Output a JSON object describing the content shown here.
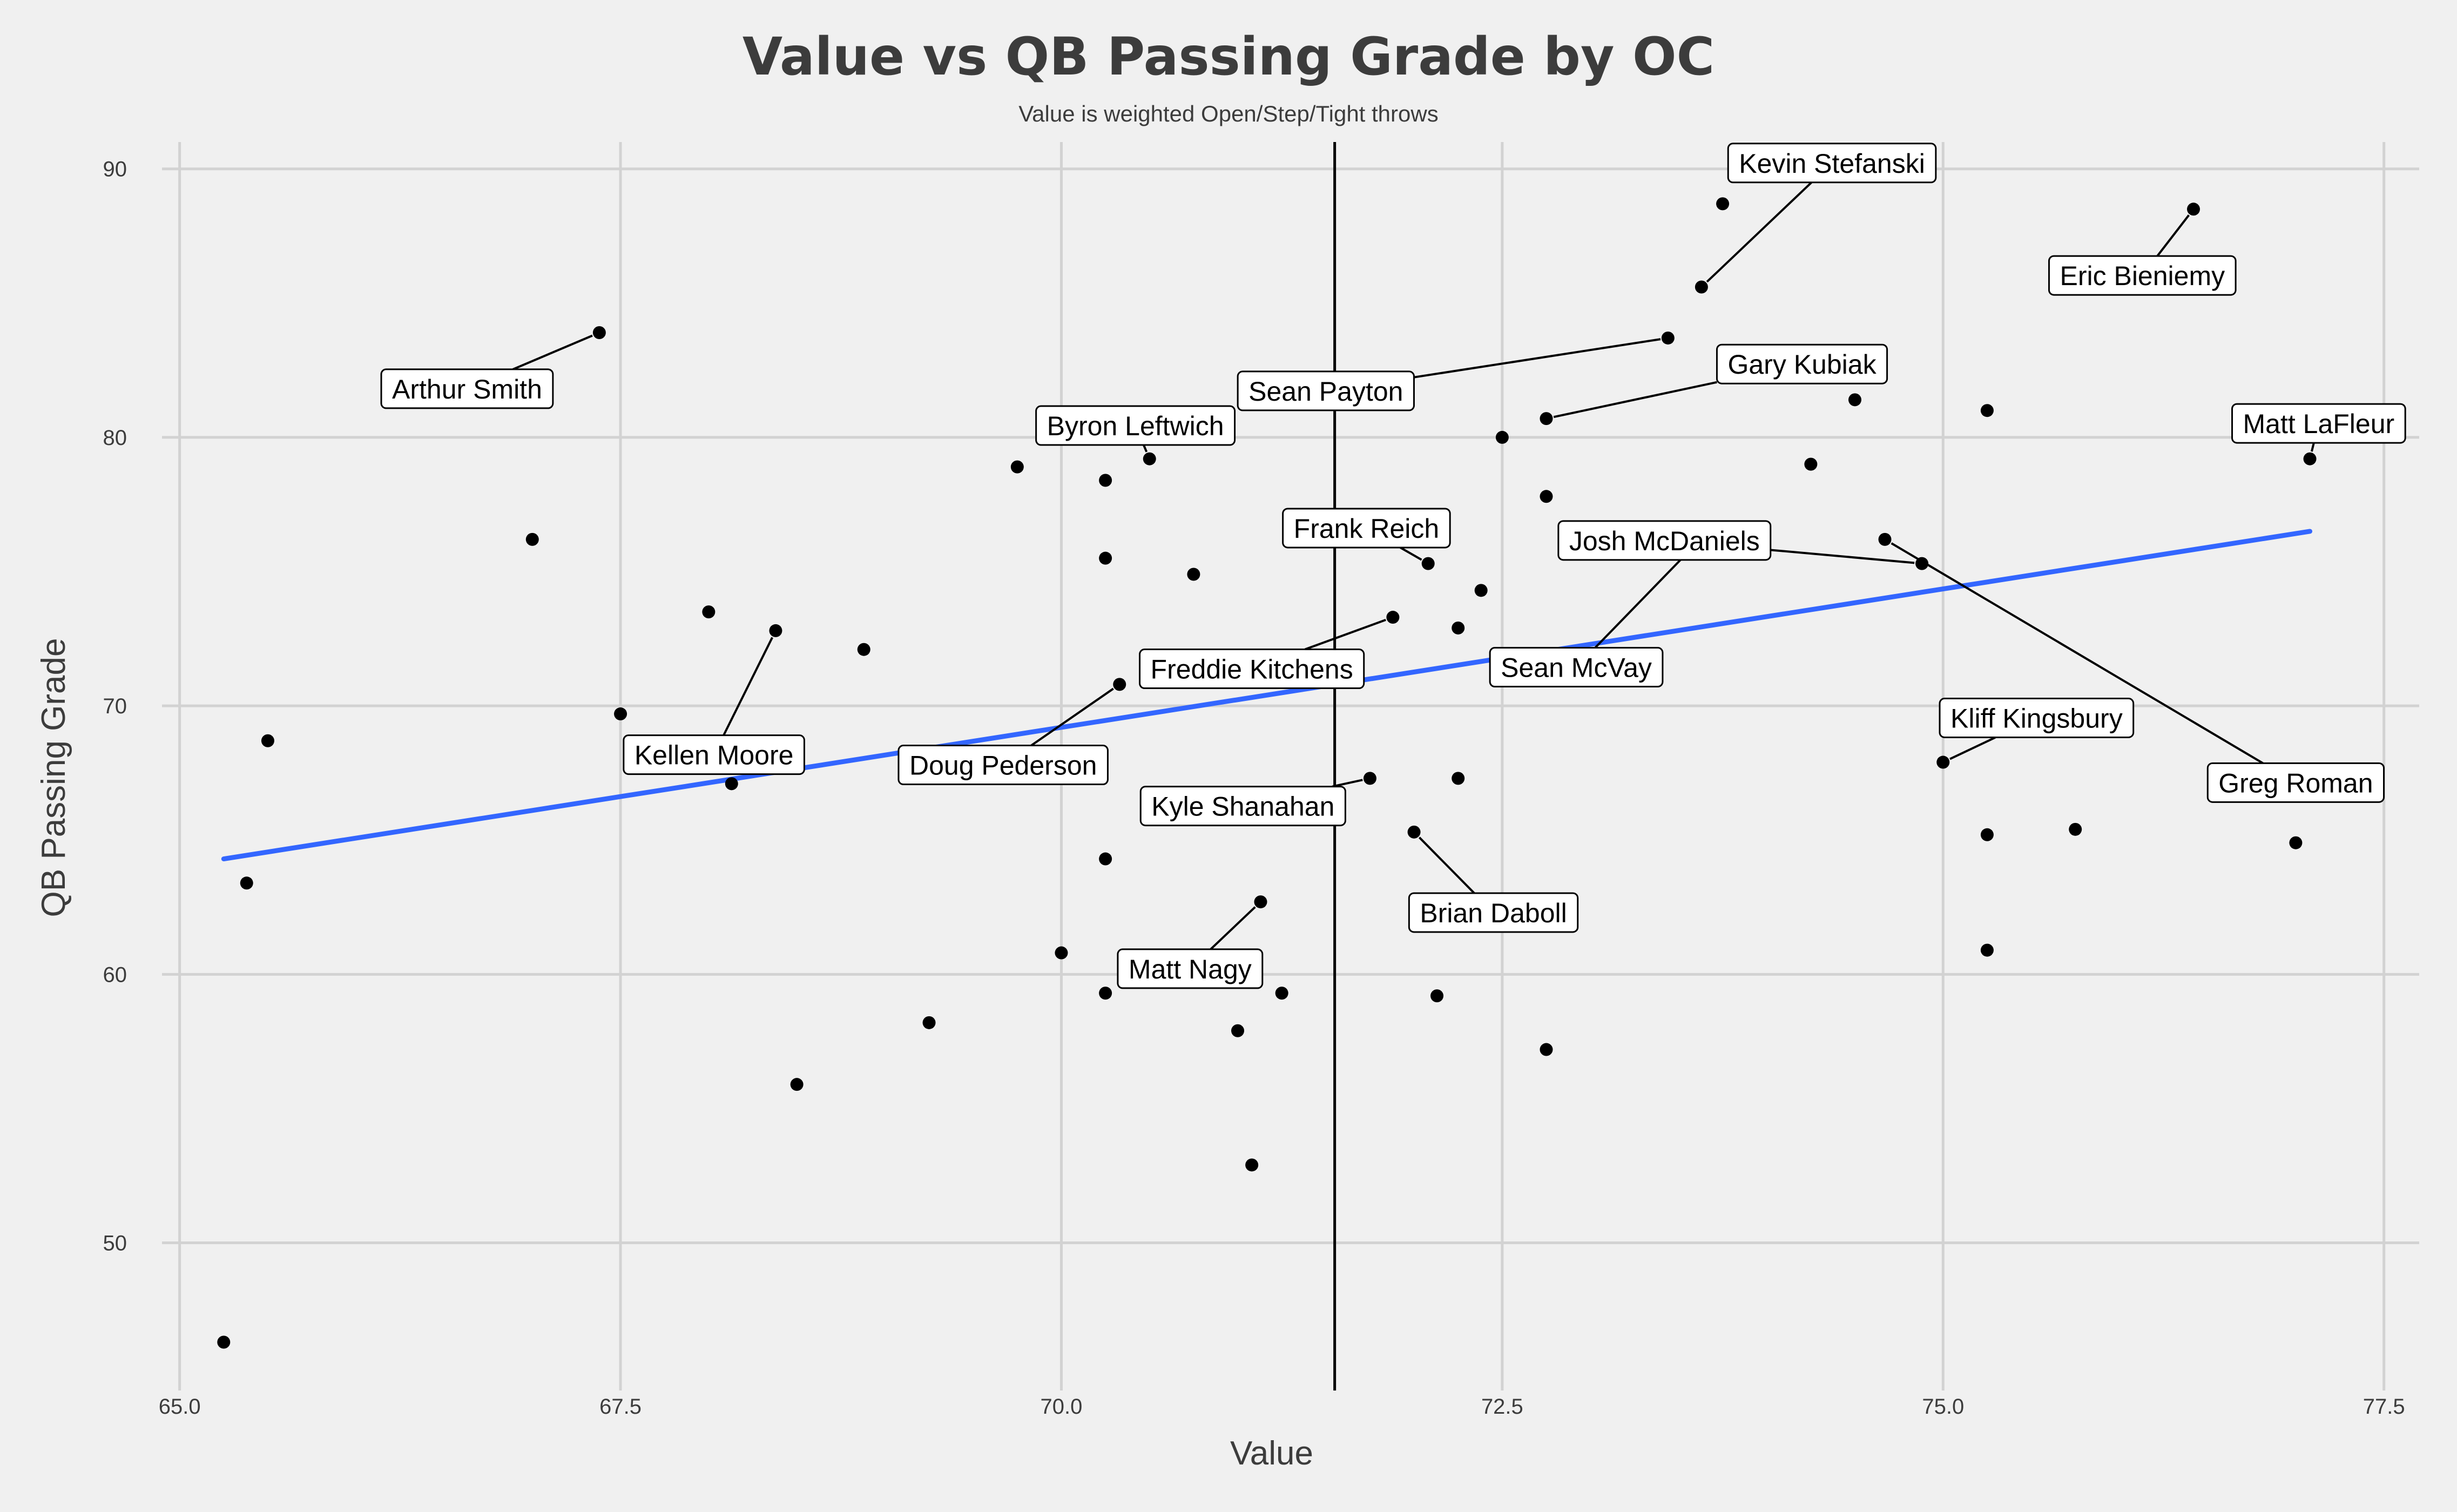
{
  "chart_data": {
    "type": "scatter",
    "title": "Value vs QB Passing Grade by OC",
    "subtitle": "Value is weighted Open/Step/Tight throws",
    "xlabel": "Value",
    "ylabel": "QB Passing Grade",
    "xlim": [
      64.9,
      77.7
    ],
    "ylim": [
      44.5,
      91.0
    ],
    "x_ticks": [
      65.0,
      67.5,
      70.0,
      72.5,
      75.0,
      77.5
    ],
    "x_tick_labels": [
      "65.0",
      "67.5",
      "70.0",
      "72.5",
      "75.0",
      "77.5"
    ],
    "y_ticks": [
      50,
      60,
      70,
      80,
      90
    ],
    "y_tick_labels": [
      "50",
      "60",
      "70",
      "80",
      "90"
    ],
    "grid": true,
    "vertical_line_x": 71.55,
    "trend_line": {
      "x": [
        65.25,
        77.08
      ],
      "y": [
        64.3,
        76.5
      ],
      "color": "#3366ff"
    },
    "point_color": "#000000",
    "points": [
      {
        "x": 65.25,
        "y": 46.3
      },
      {
        "x": 65.38,
        "y": 63.4
      },
      {
        "x": 65.5,
        "y": 68.7
      },
      {
        "x": 67.0,
        "y": 76.2
      },
      {
        "x": 67.38,
        "y": 83.9
      },
      {
        "x": 67.5,
        "y": 69.7
      },
      {
        "x": 68.0,
        "y": 73.5
      },
      {
        "x": 68.13,
        "y": 67.1
      },
      {
        "x": 68.38,
        "y": 72.8
      },
      {
        "x": 68.5,
        "y": 55.9
      },
      {
        "x": 68.88,
        "y": 72.1
      },
      {
        "x": 69.25,
        "y": 58.2
      },
      {
        "x": 69.75,
        "y": 78.9
      },
      {
        "x": 70.0,
        "y": 60.8
      },
      {
        "x": 70.25,
        "y": 78.4
      },
      {
        "x": 70.25,
        "y": 75.5
      },
      {
        "x": 70.25,
        "y": 64.3
      },
      {
        "x": 70.25,
        "y": 59.3
      },
      {
        "x": 70.33,
        "y": 70.8
      },
      {
        "x": 70.5,
        "y": 79.2
      },
      {
        "x": 70.75,
        "y": 74.9
      },
      {
        "x": 71.0,
        "y": 57.9
      },
      {
        "x": 71.08,
        "y": 52.9
      },
      {
        "x": 71.13,
        "y": 62.7
      },
      {
        "x": 71.25,
        "y": 59.3
      },
      {
        "x": 71.75,
        "y": 67.3
      },
      {
        "x": 71.88,
        "y": 73.3
      },
      {
        "x": 72.0,
        "y": 65.3
      },
      {
        "x": 72.08,
        "y": 75.3
      },
      {
        "x": 72.13,
        "y": 59.2
      },
      {
        "x": 72.25,
        "y": 72.9
      },
      {
        "x": 72.25,
        "y": 67.3
      },
      {
        "x": 72.38,
        "y": 74.3
      },
      {
        "x": 72.5,
        "y": 80.0
      },
      {
        "x": 72.75,
        "y": 80.7
      },
      {
        "x": 72.75,
        "y": 77.8
      },
      {
        "x": 72.75,
        "y": 57.2
      },
      {
        "x": 73.44,
        "y": 83.7
      },
      {
        "x": 73.55,
        "y": 75.7
      },
      {
        "x": 73.63,
        "y": 85.6
      },
      {
        "x": 73.75,
        "y": 88.7
      },
      {
        "x": 74.25,
        "y": 79.0
      },
      {
        "x": 74.5,
        "y": 81.4
      },
      {
        "x": 74.67,
        "y": 76.2
      },
      {
        "x": 74.88,
        "y": 75.3
      },
      {
        "x": 75.0,
        "y": 67.9
      },
      {
        "x": 75.25,
        "y": 81.0
      },
      {
        "x": 75.25,
        "y": 65.2
      },
      {
        "x": 75.25,
        "y": 60.9
      },
      {
        "x": 75.75,
        "y": 65.4
      },
      {
        "x": 76.42,
        "y": 88.5
      },
      {
        "x": 77.0,
        "y": 64.9
      },
      {
        "x": 77.08,
        "y": 79.2
      }
    ],
    "annotations": [
      {
        "label": "Kevin Stefanski",
        "x": 73.63,
        "y": 85.6,
        "lx": 74.37,
        "ly": 90.22
      },
      {
        "label": "Eric Bieniemy",
        "x": 76.42,
        "y": 88.5,
        "lx": 76.13,
        "ly": 86.03
      },
      {
        "label": "Arthur Smith",
        "x": 67.38,
        "y": 83.9,
        "lx": 66.63,
        "ly": 81.81
      },
      {
        "label": "Gary Kubiak",
        "x": 72.75,
        "y": 80.7,
        "lx": 74.2,
        "ly": 82.73
      },
      {
        "label": "Sean Payton",
        "x": 73.44,
        "y": 83.7,
        "lx": 71.5,
        "ly": 81.73
      },
      {
        "label": "Byron Leftwich",
        "x": 70.5,
        "y": 79.2,
        "lx": 70.42,
        "ly": 80.44
      },
      {
        "label": "Matt LaFleur",
        "x": 77.08,
        "y": 79.2,
        "lx": 77.13,
        "ly": 80.52
      },
      {
        "label": "Frank Reich",
        "x": 72.08,
        "y": 75.3,
        "lx": 71.73,
        "ly": 76.62
      },
      {
        "label": "Josh McDaniels",
        "x": 74.88,
        "y": 75.3,
        "lx": 73.42,
        "ly": 76.16
      },
      {
        "label": "Freddie Kitchens",
        "x": 71.88,
        "y": 73.3,
        "lx": 71.08,
        "ly": 71.38
      },
      {
        "label": "Sean McVay",
        "x": 73.55,
        "y": 75.7,
        "lx": 72.92,
        "ly": 71.44
      },
      {
        "label": "Kellen Moore",
        "x": 68.38,
        "y": 72.8,
        "lx": 68.03,
        "ly": 68.18
      },
      {
        "label": "Doug Pederson",
        "x": 70.33,
        "y": 70.8,
        "lx": 69.67,
        "ly": 67.8
      },
      {
        "label": "Kliff Kingsbury",
        "x": 75.0,
        "y": 67.9,
        "lx": 75.53,
        "ly": 69.55
      },
      {
        "label": "Greg Roman",
        "x": 74.67,
        "y": 76.2,
        "lx": 77.0,
        "ly": 67.14
      },
      {
        "label": "Kyle Shanahan",
        "x": 71.75,
        "y": 67.3,
        "lx": 71.03,
        "ly": 66.27
      },
      {
        "label": "Brian Daboll",
        "x": 72.0,
        "y": 65.3,
        "lx": 72.45,
        "ly": 62.3
      },
      {
        "label": "Matt Nagy",
        "x": 71.13,
        "y": 62.7,
        "lx": 70.73,
        "ly": 60.21
      }
    ]
  }
}
